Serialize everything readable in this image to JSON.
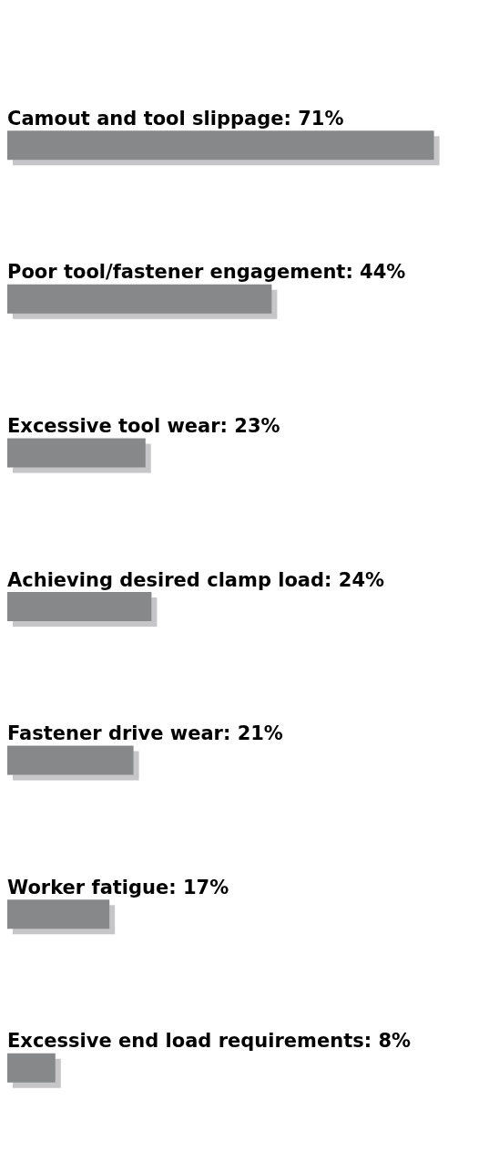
{
  "chart_data": {
    "type": "bar",
    "orientation": "horizontal",
    "categories": [
      null,
      null,
      null,
      null,
      null,
      null,
      null
    ],
    "values": [
      71,
      44,
      23,
      24,
      21,
      17,
      8
    ],
    "value_labels": [
      "Camout and tool slippage: 71%",
      "Poor tool/fastener engagement: 44%",
      "Excessive tool wear: 23%",
      "Achieving desired clamp load: 24%",
      "Fastener drive wear: 21%",
      "Worker fatigue: 17%",
      "Excessive end load requirements: 8%"
    ],
    "color": "#87888a"
  }
}
